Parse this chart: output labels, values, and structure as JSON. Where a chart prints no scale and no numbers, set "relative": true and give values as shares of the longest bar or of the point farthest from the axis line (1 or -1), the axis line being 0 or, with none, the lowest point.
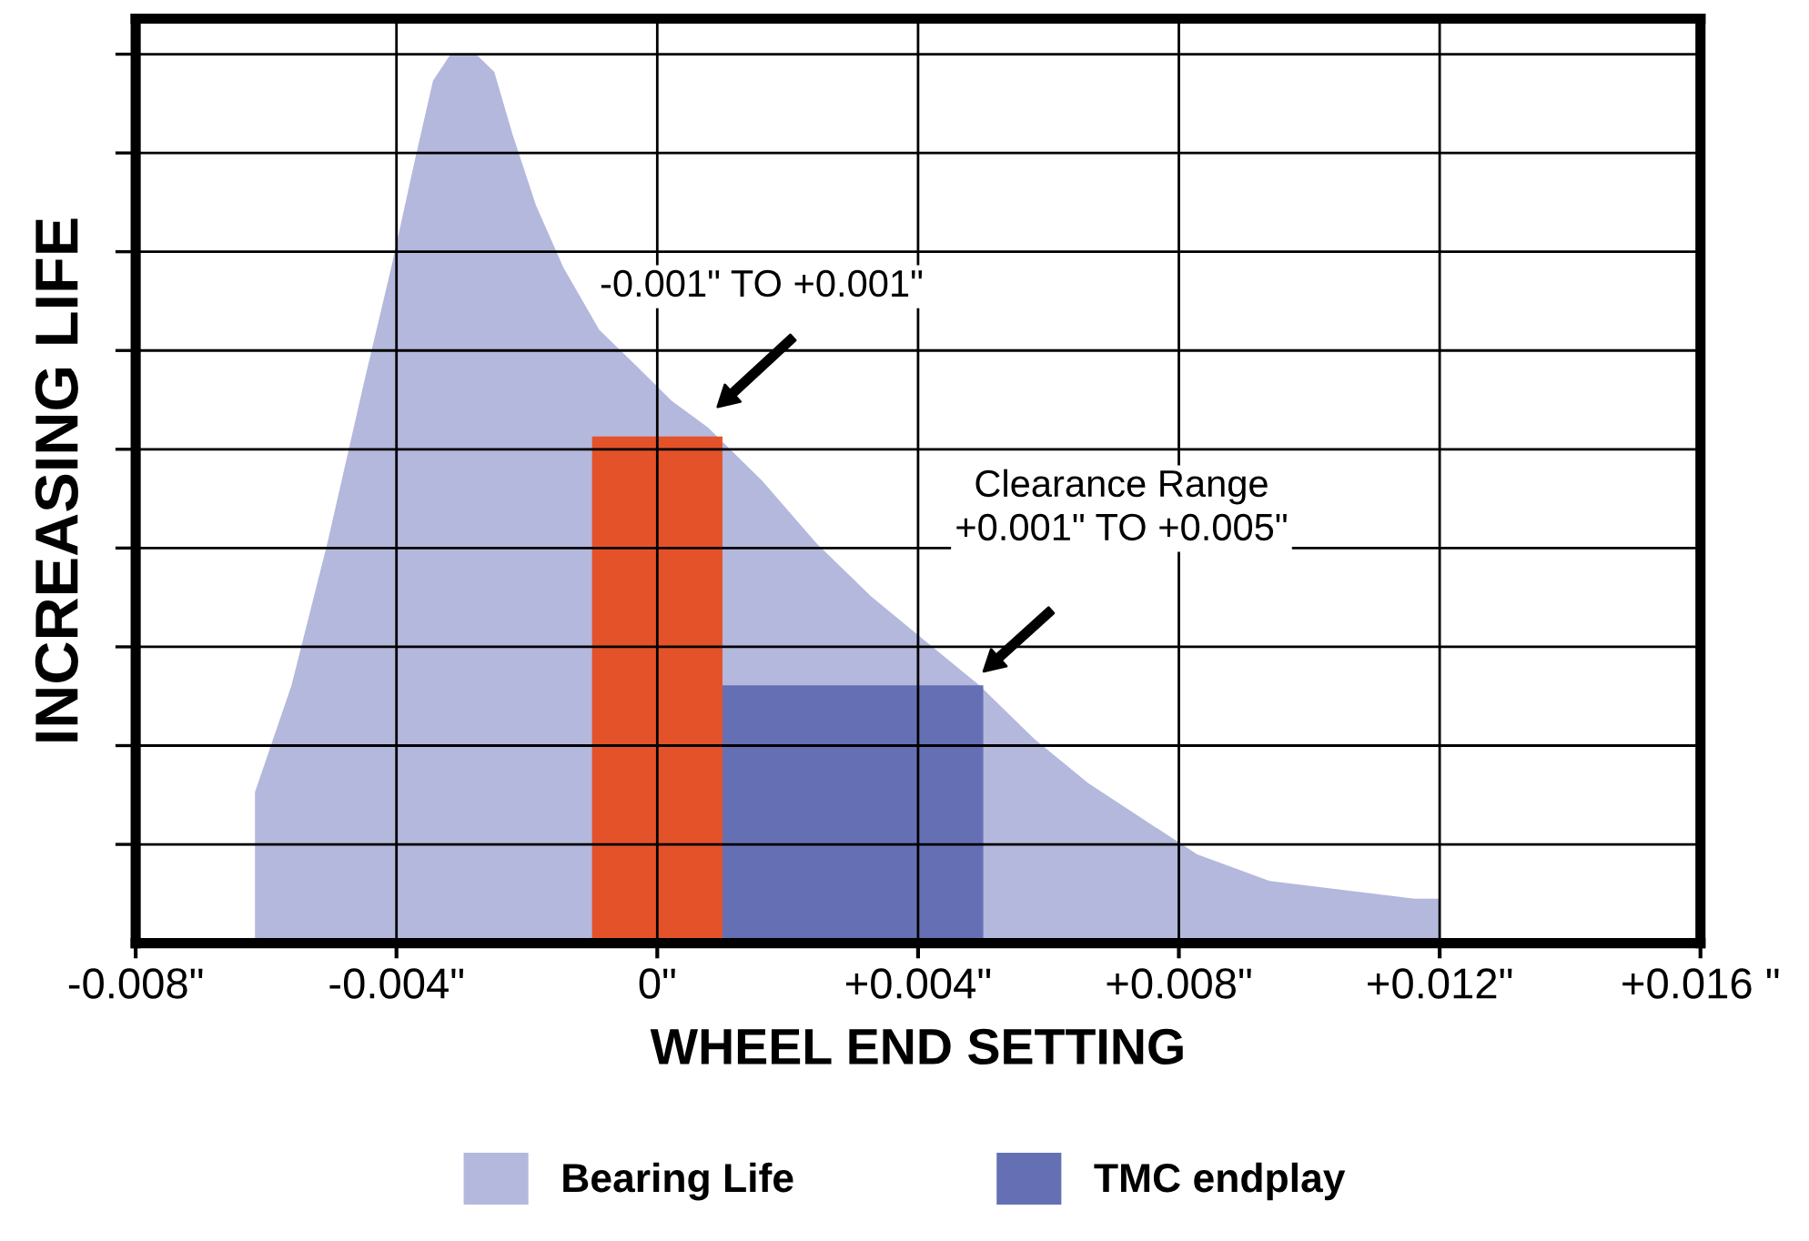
{
  "chart_data": {
    "type": "area",
    "xlabel": "WHEEL END SETTING",
    "ylabel": "INCREASING LIFE",
    "relative": true,
    "grid": true,
    "legend": "bottom",
    "tick_labels": "x",
    "xlim": [
      -0.008,
      0.016
    ],
    "xticks": [
      {
        "value": -0.008,
        "label": "-0.008\""
      },
      {
        "value": -0.004,
        "label": "-0.004\""
      },
      {
        "value": 0,
        "label": "0\""
      },
      {
        "value": 0.004,
        "label": "+0.004\""
      },
      {
        "value": 0.008,
        "label": "+0.008\""
      },
      {
        "value": 0.012,
        "label": "+0.012\""
      },
      {
        "value": 0.016,
        "label": "+0.016 \""
      }
    ],
    "series": [
      {
        "name": "Bearing Life",
        "color": "#b4b8dc",
        "x": [
          -0.00617,
          -0.00561,
          -0.00506,
          -0.0045,
          -0.00408,
          -0.00372,
          -0.00344,
          -0.00317,
          -0.00278,
          -0.0025,
          -0.00222,
          -0.00186,
          -0.00144,
          -0.00089,
          -0.00033,
          0.00022,
          0.00078,
          0.00161,
          0.00244,
          0.00328,
          0.00411,
          0.00494,
          0.00578,
          0.00661,
          0.00744,
          0.00828,
          0.00939,
          0.0105,
          0.01161,
          0.012
        ],
        "values": [
          0.17,
          0.29,
          0.45,
          0.63,
          0.76,
          0.88,
          0.97,
          1.0,
          1.0,
          0.98,
          0.91,
          0.83,
          0.76,
          0.69,
          0.65,
          0.61,
          0.58,
          0.52,
          0.45,
          0.39,
          0.34,
          0.29,
          0.23,
          0.18,
          0.14,
          0.1,
          0.07,
          0.06,
          0.05,
          0.05
        ]
      },
      {
        "color": "#e4522a",
        "x": [
          -0.001,
          0.001
        ],
        "values": [
          0.57,
          0.57
        ]
      },
      {
        "name": "TMC endplay",
        "color": "#6570b4",
        "x": [
          0.001,
          0.005
        ],
        "values": [
          0.29,
          0.29
        ]
      }
    ],
    "annotations": [
      "-0.001\" TO +0.001\"",
      "Clearance Range\n+0.001\" TO +0.005\""
    ]
  }
}
